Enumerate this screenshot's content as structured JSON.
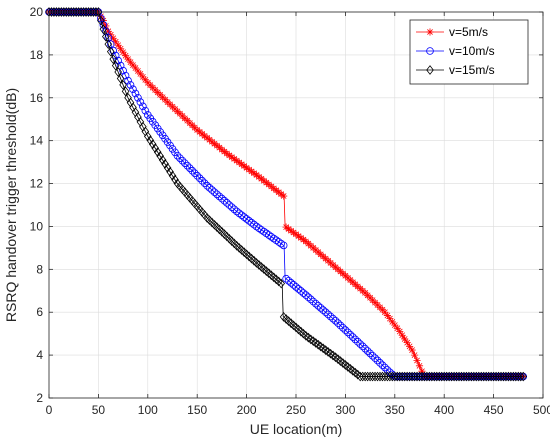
{
  "chart_data": {
    "type": "line",
    "title": "",
    "xlabel": "UE location(m)",
    "ylabel": "RSRQ handover trigger threshold(dB)",
    "xlim": [
      0,
      500
    ],
    "ylim": [
      2,
      20
    ],
    "xticks": [
      0,
      50,
      100,
      150,
      200,
      250,
      300,
      350,
      400,
      450,
      500
    ],
    "yticks": [
      2,
      4,
      6,
      8,
      10,
      12,
      14,
      16,
      18,
      20
    ],
    "grid": true,
    "legend_position": "top-right",
    "series": [
      {
        "name": "v=5m/s",
        "color": "#ff0000",
        "marker": "star",
        "points": [
          [
            0,
            20
          ],
          [
            50,
            20
          ],
          [
            55,
            19.6
          ],
          [
            60,
            19.1
          ],
          [
            80,
            17.8
          ],
          [
            100,
            16.7
          ],
          [
            120,
            15.8
          ],
          [
            150,
            14.5
          ],
          [
            180,
            13.4
          ],
          [
            210,
            12.4
          ],
          [
            238,
            11.4
          ],
          [
            239,
            10.0
          ],
          [
            260,
            9.3
          ],
          [
            290,
            8.1
          ],
          [
            320,
            6.9
          ],
          [
            340,
            6.0
          ],
          [
            355,
            5.1
          ],
          [
            368,
            4.2
          ],
          [
            378,
            3.2
          ],
          [
            380,
            3.0
          ],
          [
            480,
            3.0
          ]
        ]
      },
      {
        "name": "v=10m/s",
        "color": "#0000ff",
        "marker": "circle",
        "points": [
          [
            0,
            20
          ],
          [
            50,
            20
          ],
          [
            55,
            19.4
          ],
          [
            65,
            18.2
          ],
          [
            80,
            16.8
          ],
          [
            100,
            15.2
          ],
          [
            130,
            13.3
          ],
          [
            160,
            11.9
          ],
          [
            190,
            10.7
          ],
          [
            210,
            10.0
          ],
          [
            238,
            9.1
          ],
          [
            239,
            7.6
          ],
          [
            260,
            6.8
          ],
          [
            290,
            5.6
          ],
          [
            320,
            4.3
          ],
          [
            345,
            3.2
          ],
          [
            350,
            3.0
          ],
          [
            480,
            3.0
          ]
        ]
      },
      {
        "name": "v=15m/s",
        "color": "#000000",
        "marker": "diamond",
        "points": [
          [
            0,
            20
          ],
          [
            50,
            20
          ],
          [
            55,
            19.2
          ],
          [
            65,
            17.8
          ],
          [
            80,
            16.0
          ],
          [
            100,
            14.2
          ],
          [
            130,
            12.0
          ],
          [
            160,
            10.4
          ],
          [
            190,
            9.1
          ],
          [
            210,
            8.3
          ],
          [
            236,
            7.3
          ],
          [
            237,
            5.8
          ],
          [
            260,
            4.9
          ],
          [
            290,
            3.9
          ],
          [
            315,
            3.0
          ],
          [
            480,
            3.0
          ]
        ]
      }
    ]
  }
}
